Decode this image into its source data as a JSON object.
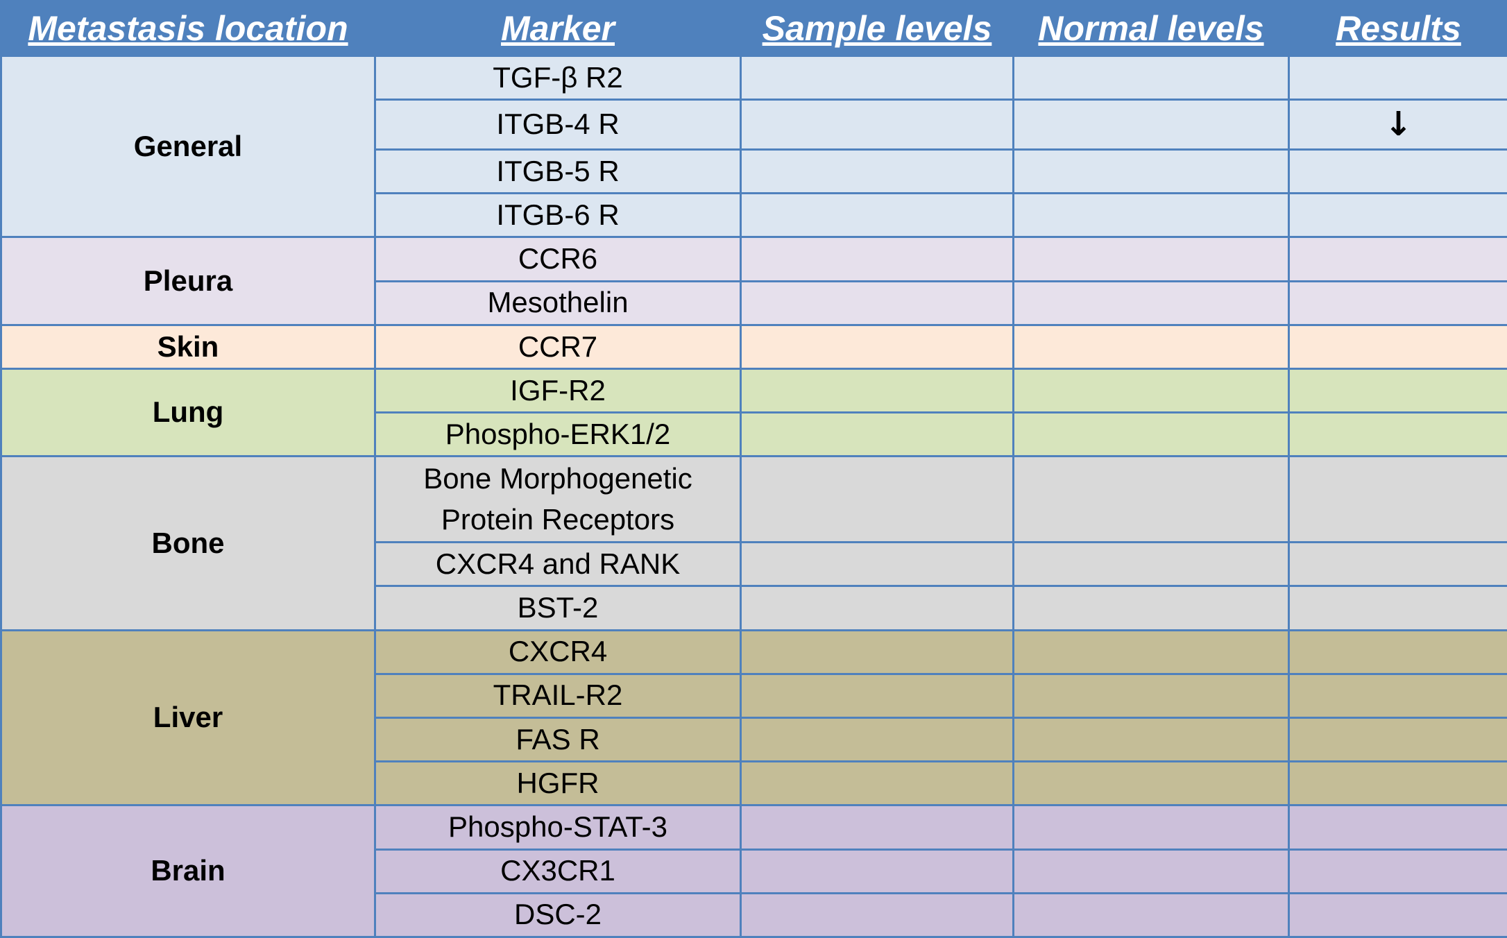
{
  "header": {
    "location": "Metastasis location",
    "marker": "Marker",
    "sample": "Sample levels",
    "normal": "Normal levels",
    "results": "Results"
  },
  "colors": {
    "header": "#4f81bd",
    "general": "#dce6f1",
    "pleura": "#e6e0ec",
    "skin": "#fde9d9",
    "lung": "#d7e4bc",
    "bone": "#d9d9d9",
    "liver": "#c4bd97",
    "brain": "#ccc0da"
  },
  "groups": [
    {
      "location": "General",
      "markers": [
        "TGF-β R2",
        "ITGB-4 R",
        "ITGB-5 R",
        "ITGB-6 R"
      ]
    },
    {
      "location": "Pleura",
      "markers": [
        "CCR6",
        "Mesothelin"
      ]
    },
    {
      "location": "Skin",
      "markers": [
        "CCR7"
      ]
    },
    {
      "location": "Lung",
      "markers": [
        "IGF-R2",
        "Phospho-ERK1/2"
      ]
    },
    {
      "location": "Bone",
      "markers": [
        "Bone Morphogenetic Protein Receptors",
        "CXCR4 and RANK",
        "BST-2"
      ]
    },
    {
      "location": "Liver",
      "markers": [
        "CXCR4",
        "TRAIL-R2",
        "FAS R",
        "HGFR"
      ]
    },
    {
      "location": "Brain",
      "markers": [
        "Phospho-STAT-3",
        "CX3CR1",
        "DSC-2"
      ]
    }
  ],
  "results_marks": {
    "itgb4": {
      "icon": "down-arrow-icon",
      "glyph": "↓"
    }
  }
}
